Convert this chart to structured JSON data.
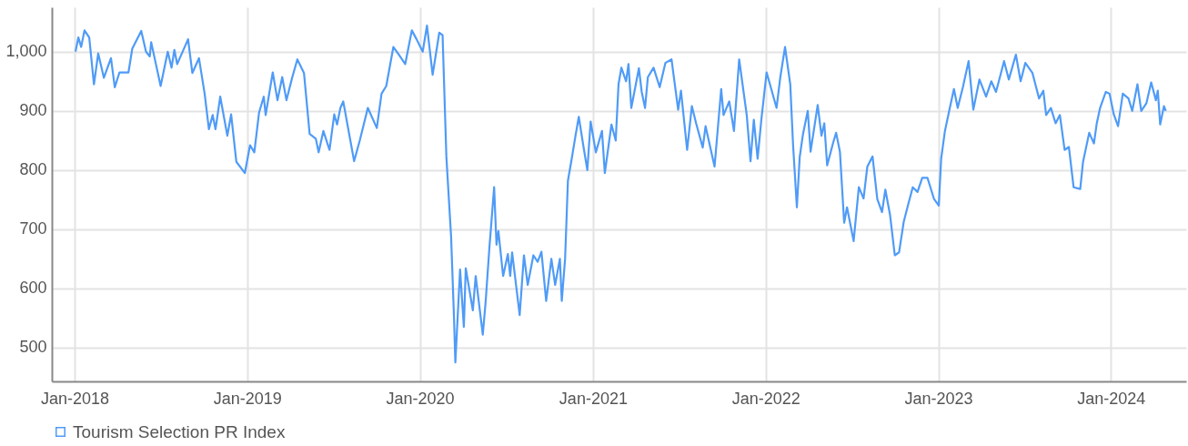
{
  "chart_data": {
    "type": "line",
    "xlim": [
      "2017-11-14",
      "2024-06-08"
    ],
    "ylim": [
      443,
      1075
    ],
    "yticks": [
      500,
      600,
      700,
      800,
      900,
      {
        "value": 1000,
        "label": "1,000"
      }
    ],
    "xticks": [
      {
        "value": "2018-01-01",
        "label": "Jan-2018"
      },
      {
        "value": "2019-01-01",
        "label": "Jan-2019"
      },
      {
        "value": "2020-01-01",
        "label": "Jan-2020"
      },
      {
        "value": "2021-01-01",
        "label": "Jan-2021"
      },
      {
        "value": "2022-01-01",
        "label": "Jan-2022"
      },
      {
        "value": "2023-01-01",
        "label": "Jan-2023"
      },
      {
        "value": "2024-01-01",
        "label": "Jan-2024"
      }
    ],
    "grid": true,
    "legend": "bottom",
    "marker": "none",
    "line_style": "solid",
    "x": [
      "2018-01-03",
      "2018-01-09",
      "2018-01-15",
      "2018-01-22",
      "2018-02-01",
      "2018-02-11",
      "2018-02-20",
      "2018-03-04",
      "2018-03-19",
      "2018-03-27",
      "2018-04-06",
      "2018-04-25",
      "2018-05-03",
      "2018-05-22",
      "2018-06-01",
      "2018-06-09",
      "2018-06-12",
      "2018-07-02",
      "2018-07-17",
      "2018-07-25",
      "2018-07-31",
      "2018-08-06",
      "2018-08-29",
      "2018-09-07",
      "2018-09-21",
      "2018-10-03",
      "2018-10-12",
      "2018-10-20",
      "2018-10-26",
      "2018-11-05",
      "2018-11-20",
      "2018-11-28",
      "2018-12-09",
      "2018-12-27",
      "2019-01-07",
      "2019-01-16",
      "2019-01-26",
      "2019-02-05",
      "2019-02-09",
      "2019-02-24",
      "2019-03-06",
      "2019-03-16",
      "2019-03-25",
      "2019-04-06",
      "2019-04-17",
      "2019-05-01",
      "2019-05-13",
      "2019-05-26",
      "2019-06-01",
      "2019-06-11",
      "2019-06-24",
      "2019-07-04",
      "2019-07-10",
      "2019-07-17",
      "2019-07-23",
      "2019-08-07",
      "2019-08-15",
      "2019-08-27",
      "2019-09-13",
      "2019-10-02",
      "2019-10-12",
      "2019-10-22",
      "2019-11-06",
      "2019-11-20",
      "2019-12-01",
      "2019-12-15",
      "2019-12-25",
      "2020-01-07",
      "2020-01-16",
      "2020-01-28",
      "2020-02-11",
      "2020-02-18",
      "2020-02-26",
      "2020-03-07",
      "2020-03-13",
      "2020-03-16",
      "2020-03-26",
      "2020-04-03",
      "2020-04-07",
      "2020-04-22",
      "2020-04-28",
      "2020-05-13",
      "2020-05-19",
      "2020-05-27",
      "2020-06-06",
      "2020-06-11",
      "2020-06-15",
      "2020-06-25",
      "2020-07-05",
      "2020-07-10",
      "2020-07-14",
      "2020-07-30",
      "2020-08-08",
      "2020-08-16",
      "2020-08-28",
      "2020-09-06",
      "2020-09-14",
      "2020-09-24",
      "2020-10-05",
      "2020-10-13",
      "2020-10-23",
      "2020-10-27",
      "2020-11-03",
      "2020-11-09",
      "2020-11-17",
      "2020-11-25",
      "2020-12-02",
      "2020-12-12",
      "2020-12-20",
      "2020-12-27",
      "2021-01-07",
      "2021-01-20",
      "2021-01-26",
      "2021-02-09",
      "2021-02-18",
      "2021-02-24",
      "2021-03-02",
      "2021-03-12",
      "2021-03-17",
      "2021-03-23",
      "2021-04-08",
      "2021-04-14",
      "2021-04-21",
      "2021-04-27",
      "2021-05-09",
      "2021-05-22",
      "2021-06-03",
      "2021-06-16",
      "2021-06-30",
      "2021-07-06",
      "2021-07-19",
      "2021-07-29",
      "2021-08-07",
      "2021-08-21",
      "2021-08-27",
      "2021-09-15",
      "2021-09-29",
      "2021-10-04",
      "2021-10-16",
      "2021-10-26",
      "2021-11-06",
      "2021-11-22",
      "2021-11-30",
      "2021-12-07",
      "2021-12-15",
      "2021-12-23",
      "2022-01-03",
      "2022-01-24",
      "2022-02-01",
      "2022-02-11",
      "2022-02-22",
      "2022-02-28",
      "2022-03-08",
      "2022-03-14",
      "2022-03-21",
      "2022-03-31",
      "2022-04-06",
      "2022-04-21",
      "2022-04-29",
      "2022-05-05",
      "2022-05-11",
      "2022-05-24",
      "2022-05-30",
      "2022-06-07",
      "2022-06-16",
      "2022-06-22",
      "2022-07-06",
      "2022-07-17",
      "2022-07-27",
      "2022-08-04",
      "2022-08-15",
      "2022-08-25",
      "2022-09-04",
      "2022-09-11",
      "2022-09-21",
      "2022-10-01",
      "2022-10-10",
      "2022-10-20",
      "2022-10-30",
      "2022-11-08",
      "2022-11-18",
      "2022-11-28",
      "2022-12-09",
      "2022-12-23",
      "2023-01-02",
      "2023-01-07",
      "2023-01-15",
      "2023-01-24",
      "2023-02-03",
      "2023-02-11",
      "2023-02-22",
      "2023-03-06",
      "2023-03-16",
      "2023-03-29",
      "2023-04-12",
      "2023-04-23",
      "2023-05-03",
      "2023-05-20",
      "2023-05-30",
      "2023-06-14",
      "2023-06-24",
      "2023-07-04",
      "2023-07-19",
      "2023-08-02",
      "2023-08-11",
      "2023-08-17",
      "2023-08-27",
      "2023-09-06",
      "2023-09-15",
      "2023-09-25",
      "2023-10-04",
      "2023-10-14",
      "2023-10-28",
      "2023-11-03",
      "2023-11-16",
      "2023-11-26",
      "2023-12-02",
      "2023-12-09",
      "2023-12-21",
      "2023-12-29",
      "2024-01-07",
      "2024-01-16",
      "2024-01-26",
      "2024-02-07",
      "2024-02-15",
      "2024-02-26",
      "2024-03-05",
      "2024-03-16",
      "2024-03-26",
      "2024-04-05",
      "2024-04-09",
      "2024-04-14",
      "2024-04-22",
      "2024-04-26"
    ],
    "series": [
      {
        "name": "Tourism Selection PR Index",
        "color": "#4f9bf7",
        "values": [
          1000,
          1024,
          1008,
          1036,
          1024,
          945,
          997,
          956,
          989,
          940,
          965,
          965,
          1005,
          1035,
          1000,
          992,
          1016,
          942,
          1000,
          973,
          1003,
          979,
          1021,
          964,
          989,
          929,
          869,
          893,
          869,
          924,
          858,
          894,
          814,
          795,
          842,
          830,
          897,
          924,
          893,
          965,
          918,
          957,
          918,
          956,
          987,
          964,
          861,
          853,
          830,
          866,
          834,
          894,
          877,
          905,
          916,
          850,
          815,
          850,
          905,
          871,
          929,
          942,
          1008,
          992,
          979,
          1036,
          1021,
          1000,
          1044,
          961,
          1032,
          1028,
          823,
          688,
          555,
          475,
          632,
          535,
          634,
          563,
          621,
          522,
          577,
          669,
          771,
          674,
          697,
          621,
          658,
          621,
          661,
          555,
          656,
          606,
          656,
          645,
          662,
          579,
          650,
          606,
          650,
          579,
          650,
          782,
          819,
          858,
          890,
          839,
          800,
          882,
          830,
          866,
          795,
          877,
          850,
          945,
          973,
          950,
          979,
          905,
          972,
          932,
          905,
          957,
          973,
          940,
          981,
          987,
          902,
          934,
          834,
          908,
          879,
          838,
          874,
          806,
          937,
          893,
          916,
          866,
          987,
          893,
          815,
          885,
          819,
          886,
          965,
          905,
          957,
          1008,
          945,
          842,
          737,
          822,
          861,
          900,
          831,
          910,
          858,
          879,
          808,
          847,
          863,
          831,
          711,
          737,
          680,
          771,
          752,
          806,
          823,
          751,
          729,
          767,
          724,
          656,
          661,
          713,
          744,
          771,
          763,
          787,
          787,
          751,
          740,
          819,
          866,
          900,
          937,
          905,
          940,
          984,
          902,
          953,
          924,
          950,
          932,
          984,
          953,
          995,
          950,
          981,
          964,
          921,
          934,
          893,
          905,
          879,
          893,
          834,
          839,
          771,
          768,
          814,
          863,
          845,
          879,
          905,
          932,
          929,
          894,
          874,
          929,
          921,
          900,
          945,
          900,
          913,
          948,
          918,
          934,
          877,
          908,
          900
        ]
      }
    ]
  }
}
